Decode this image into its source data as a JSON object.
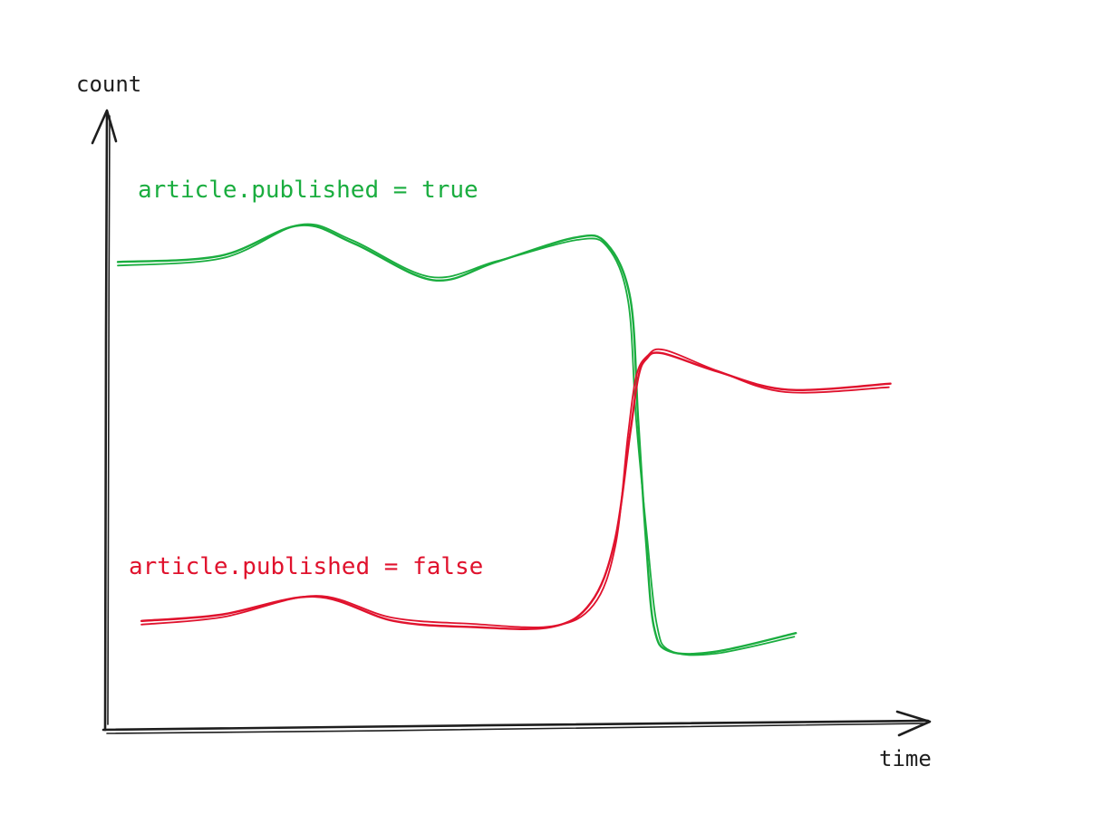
{
  "chart_data": {
    "type": "line",
    "xlabel": "time",
    "ylabel": "count",
    "xlim": [
      0,
      100
    ],
    "ylim": [
      0,
      100
    ],
    "grid": false,
    "axis_color": "#1e1e1e",
    "series": [
      {
        "name": "article.published = true",
        "color": "#1aad3f",
        "x": [
          0,
          13,
          23,
          30,
          40,
          48,
          58,
          62,
          65,
          66,
          67,
          68,
          70,
          76,
          86
        ],
        "y": [
          76,
          77,
          82,
          79,
          73,
          76,
          80,
          79,
          70,
          50,
          30,
          16,
          12,
          12,
          15
        ]
      },
      {
        "name": "article.published = false",
        "color": "#e0122d",
        "x": [
          3,
          13,
          25,
          35,
          45,
          55,
          60,
          63,
          65,
          66,
          67,
          69,
          76,
          85,
          98
        ],
        "y": [
          17,
          18,
          21,
          17,
          16,
          16,
          20,
          30,
          48,
          57,
          60,
          61,
          58,
          55,
          56
        ]
      }
    ]
  }
}
